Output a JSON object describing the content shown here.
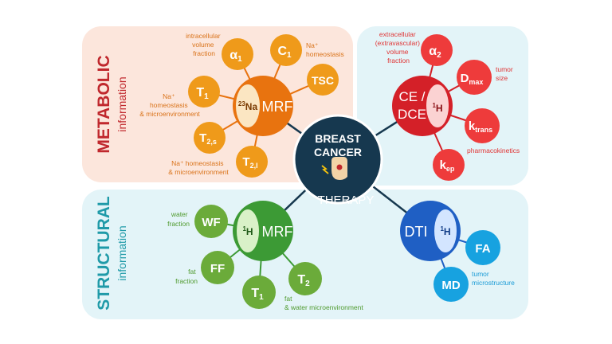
{
  "center": {
    "line1": "BREAST",
    "line2": "CANCER",
    "line3": "THERAPY",
    "colors": {
      "fill": "#16384f",
      "stroke": "#ffffff"
    }
  },
  "panels": {
    "metabolic": {
      "title": "METABOLIC",
      "subtitle": "information",
      "bg": "#fce6dc",
      "title_color": "#c0282d"
    },
    "structural": {
      "title": "STRUCTURAL",
      "subtitle": "information",
      "bg": "#e3f4f8",
      "title_color": "#1f9aa8"
    },
    "right_bg": "#e3f4f8"
  },
  "hubs": {
    "na_mrf": {
      "nucleus_prefix": "23",
      "nucleus": "Na",
      "label": "MRF",
      "color": "#e8730f"
    },
    "ce_dce": {
      "line1": "CE /",
      "line2": "DCE",
      "nucleus_prefix": "1",
      "nucleus": "H",
      "color": "#d42028"
    },
    "h_mrf": {
      "nucleus_prefix": "1",
      "nucleus": "H",
      "label": "MRF",
      "color": "#3c9a35"
    },
    "dti": {
      "label": "DTI",
      "nucleus_prefix": "1",
      "nucleus": "H",
      "color": "#1f5fc4"
    }
  },
  "satellites": {
    "alpha1": {
      "main": "α",
      "sub": "1",
      "color": "#ef9a1a"
    },
    "c1": {
      "main": "C",
      "sub": "1",
      "color": "#ef9a1a"
    },
    "tsc": {
      "main": "TSC",
      "sub": "",
      "color": "#ef9a1a"
    },
    "t1_na": {
      "main": "T",
      "sub": "1",
      "color": "#ef9a1a"
    },
    "t2s": {
      "main": "T",
      "sub": "2,s",
      "color": "#ef9a1a"
    },
    "t2l": {
      "main": "T",
      "sub": "2,l",
      "color": "#ef9a1a"
    },
    "alpha2": {
      "main": "α",
      "sub": "2",
      "color": "#ee3b3b"
    },
    "dmax": {
      "main": "D",
      "sub": "max",
      "color": "#ee3b3b"
    },
    "ktrans": {
      "main": "k",
      "sub": "trans",
      "color": "#ee3b3b"
    },
    "kep": {
      "main": "k",
      "sub": "ep",
      "color": "#ee3b3b"
    },
    "wf": {
      "main": "WF",
      "sub": "",
      "color": "#6bab3a"
    },
    "ff": {
      "main": "FF",
      "sub": "",
      "color": "#6bab3a"
    },
    "t1_h": {
      "main": "T",
      "sub": "1",
      "color": "#6bab3a"
    },
    "t2_h": {
      "main": "T",
      "sub": "2",
      "color": "#6bab3a"
    },
    "fa": {
      "main": "FA",
      "sub": "",
      "color": "#17a2e0"
    },
    "md": {
      "main": "MD",
      "sub": "",
      "color": "#17a2e0"
    }
  },
  "annotations": {
    "alpha1": {
      "lines": [
        "intracellular",
        "volume",
        "fraction"
      ],
      "color": "#d9731a"
    },
    "c1": {
      "lines": [
        "Na⁺",
        "homeostasis"
      ],
      "color": "#d9731a"
    },
    "t1_na": {
      "lines": [
        "Na⁺",
        "homeostasis",
        "& microenvironment"
      ],
      "color": "#d9731a"
    },
    "t2": {
      "lines": [
        "Na⁺ homeostasis",
        "& microenvironment"
      ],
      "color": "#d9731a"
    },
    "alpha2": {
      "lines": [
        "extracellular",
        "(extravascular)",
        "volume",
        "fraction"
      ],
      "color": "#e03535"
    },
    "dmax": {
      "lines": [
        "tumor",
        "size"
      ],
      "color": "#e03535"
    },
    "kinetics": {
      "lines": [
        "pharmacokinetics"
      ],
      "color": "#e03535"
    },
    "wf": {
      "lines": [
        "water",
        "fraction"
      ],
      "color": "#4f9a2e"
    },
    "ff": {
      "lines": [
        "fat",
        "fraction"
      ],
      "color": "#4f9a2e"
    },
    "fat_water": {
      "lines": [
        "fat",
        "& water microenvironment"
      ],
      "color": "#4f9a2e"
    },
    "micro": {
      "lines": [
        "tumor",
        "microstructure"
      ],
      "color": "#1a9bd6"
    }
  },
  "icon": "breast-cancer-therapy-icon"
}
